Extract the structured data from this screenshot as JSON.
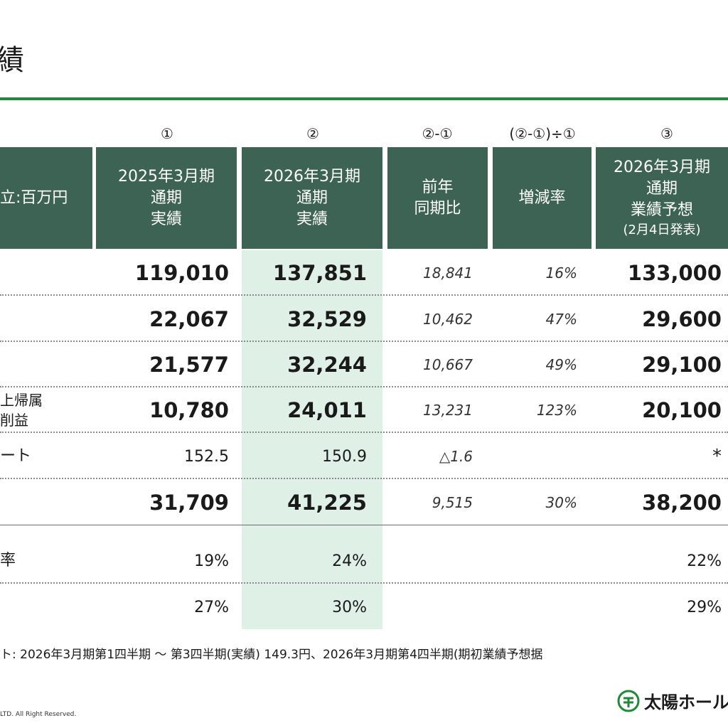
{
  "page": {
    "title": "績",
    "footnote": "ト: 2026年3月期第1四半期 〜 第3四半期(実績) 149.3円、2026年3月期第4四半期(期初業績予想据",
    "copyright": "LTD.  All Right Reserved.",
    "logo_text": "太陽ホール",
    "logo_icon": "taiyo-logo-icon"
  },
  "colors": {
    "header_bg": "#3d6354",
    "accent_rule": "#1e8a3a",
    "highlight_col": "#dff0e6"
  },
  "columns": [
    {
      "marker": "",
      "lines": [
        "立:百万円"
      ]
    },
    {
      "marker": "①",
      "lines": [
        "2025年3月期",
        "通期",
        "実績"
      ]
    },
    {
      "marker": "②",
      "lines": [
        "2026年3月期",
        "通期",
        "実績"
      ]
    },
    {
      "marker": "②-①",
      "lines": [
        "前年",
        "同期比"
      ]
    },
    {
      "marker": "(②-①)÷①",
      "lines": [
        "増減率"
      ]
    },
    {
      "marker": "③",
      "lines": [
        "2026年3月期",
        "通期",
        "業績予想"
      ],
      "note": "(2月4日発表)"
    }
  ],
  "rows": [
    {
      "label": "",
      "v1": "119,010",
      "v2": "137,851",
      "v3": "18,841",
      "v4": "16%",
      "v5": "133,000"
    },
    {
      "label": "",
      "v1": "22,067",
      "v2": "32,529",
      "v3": "10,462",
      "v4": "47%",
      "v5": "29,600"
    },
    {
      "label": "",
      "v1": "21,577",
      "v2": "32,244",
      "v3": "10,667",
      "v4": "49%",
      "v5": "29,100"
    },
    {
      "label": "上帰属\n削益",
      "v1": "10,780",
      "v2": "24,011",
      "v3": "13,231",
      "v4": "123%",
      "v5": "20,100"
    },
    {
      "label": "ート",
      "v1": "152.5",
      "v2": "150.9",
      "v3": "△1.6",
      "v4": "",
      "v5": "*"
    },
    {
      "label": "",
      "v1": "31,709",
      "v2": "41,225",
      "v3": "9,515",
      "v4": "30%",
      "v5": "38,200"
    },
    {
      "label": "率",
      "v1": "19%",
      "v2": "24%",
      "v3": "",
      "v4": "",
      "v5": "22%"
    },
    {
      "label": "",
      "v1": "27%",
      "v2": "30%",
      "v3": "",
      "v4": "",
      "v5": "29%"
    }
  ]
}
